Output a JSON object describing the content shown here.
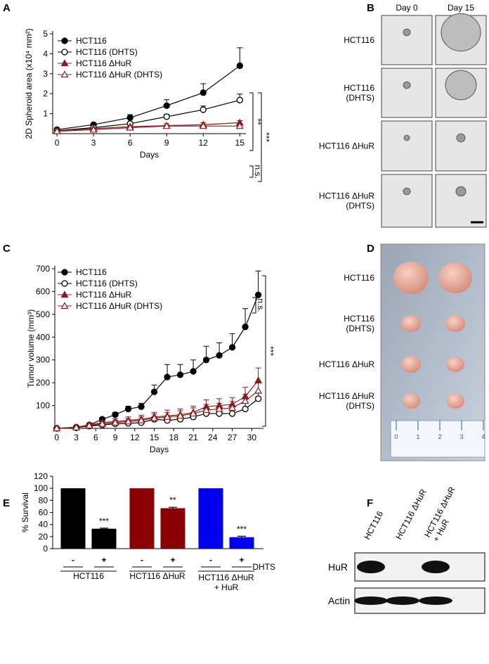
{
  "panel_labels": [
    "A",
    "B",
    "C",
    "D",
    "E",
    "F"
  ],
  "chart_data": [
    {
      "type": "line",
      "ylabel": "2D Spheroid area (x10⁴ mm²)",
      "xlabel": "Days",
      "x": [
        0,
        3,
        6,
        9,
        12,
        15
      ],
      "xlim": [
        -0.35,
        15.5
      ],
      "xticks": [
        0,
        3,
        6,
        9,
        12,
        15
      ],
      "ylim": [
        0,
        5
      ],
      "yticks": [
        1,
        2,
        3,
        4,
        5
      ],
      "series": [
        {
          "name": "HCT116",
          "color": "#000000",
          "marker": "circle",
          "filled": true,
          "values": [
            0.2,
            0.45,
            0.8,
            1.4,
            2.05,
            3.4
          ],
          "errors": [
            0.05,
            0.05,
            0.15,
            0.3,
            0.45,
            0.9
          ]
        },
        {
          "name": "HCT116 (DHTS)",
          "color": "#000000",
          "marker": "circle",
          "filled": false,
          "values": [
            0.15,
            0.3,
            0.5,
            0.85,
            1.2,
            1.68
          ],
          "errors": [
            0.03,
            0.05,
            0.08,
            0.12,
            0.18,
            0.3
          ]
        },
        {
          "name": "HCT116 ΔHuR",
          "color": "#8b1a1a",
          "marker": "triangle",
          "filled": true,
          "values": [
            0.15,
            0.25,
            0.35,
            0.4,
            0.45,
            0.55
          ],
          "errors": [
            0.03,
            0.05,
            0.05,
            0.1,
            0.1,
            0.1
          ]
        },
        {
          "name": "HCT116 ΔHuR (DHTS)",
          "color": "#8b1a1a",
          "marker": "triangle",
          "filled": false,
          "values": [
            0.12,
            0.2,
            0.3,
            0.38,
            0.38,
            0.38
          ],
          "errors": [
            0.03,
            0.03,
            0.05,
            0.05,
            0.05,
            0.05
          ]
        }
      ],
      "annotations": [
        "**",
        "***",
        "n.s."
      ]
    },
    {
      "type": "line",
      "ylabel": "Tumor volume (mm³)",
      "xlabel": "Days",
      "x": [
        0,
        3,
        5,
        7,
        9,
        11,
        13,
        15,
        17,
        19,
        21,
        23,
        25,
        27,
        29,
        31
      ],
      "xlim": [
        -0.3,
        31.8
      ],
      "xticks": [
        0,
        3,
        6,
        9,
        12,
        15,
        18,
        21,
        24,
        27,
        30
      ],
      "ylim": [
        0,
        700
      ],
      "yticks": [
        100,
        200,
        300,
        400,
        500,
        600,
        700
      ],
      "series": [
        {
          "name": "HCT116",
          "color": "#000000",
          "marker": "circle",
          "filled": true,
          "values": [
            0,
            5,
            15,
            40,
            60,
            85,
            95,
            160,
            225,
            235,
            250,
            300,
            320,
            355,
            445,
            585
          ],
          "errors": [
            0,
            3,
            5,
            8,
            10,
            12,
            15,
            30,
            55,
            45,
            50,
            60,
            55,
            60,
            80,
            105
          ]
        },
        {
          "name": "HCT116 (DHTS)",
          "color": "#000000",
          "marker": "circle",
          "filled": false,
          "values": [
            0,
            3,
            10,
            15,
            20,
            22,
            25,
            40,
            35,
            40,
            50,
            65,
            65,
            65,
            85,
            130
          ],
          "errors": [
            0,
            2,
            4,
            5,
            6,
            8,
            10,
            12,
            10,
            12,
            15,
            20,
            20,
            18,
            25,
            30
          ]
        },
        {
          "name": "HCT116 ΔHuR",
          "color": "#8b1a1a",
          "marker": "triangle",
          "filled": true,
          "values": [
            0,
            5,
            15,
            25,
            30,
            35,
            40,
            50,
            55,
            60,
            70,
            95,
            100,
            105,
            140,
            210
          ],
          "errors": [
            0,
            3,
            5,
            10,
            12,
            15,
            18,
            20,
            25,
            25,
            28,
            30,
            30,
            30,
            40,
            55
          ]
        },
        {
          "name": "HCT116 ΔHuR (DHTS)",
          "color": "#8b1a1a",
          "marker": "triangle",
          "filled": false,
          "values": [
            0,
            4,
            12,
            20,
            25,
            30,
            35,
            45,
            50,
            55,
            65,
            80,
            85,
            90,
            120,
            165
          ],
          "errors": [
            0,
            3,
            5,
            8,
            10,
            12,
            15,
            18,
            20,
            22,
            25,
            25,
            25,
            28,
            30,
            35
          ]
        }
      ],
      "annotations": [
        "***",
        "n.s."
      ]
    },
    {
      "type": "bar",
      "ylabel": "% Survival",
      "categories": [
        "-",
        "+",
        "-",
        "+",
        "-",
        "+"
      ],
      "values": [
        100,
        33,
        100,
        67,
        100,
        19
      ],
      "errors": [
        0,
        1,
        0,
        1.5,
        0,
        1.5
      ],
      "colors": [
        "#000000",
        "#000000",
        "#8b0000",
        "#8b0000",
        "#0000ee",
        "#0000ee"
      ],
      "significance": [
        null,
        "***",
        null,
        "**",
        null,
        "***"
      ],
      "ylim": [
        0,
        120
      ],
      "yticks": [
        0,
        20,
        40,
        60,
        80,
        100,
        120
      ],
      "groups": [
        "HCT116",
        "HCT116 ΔHuR",
        "HCT116 ΔHuR\n+ HuR"
      ],
      "factor_label": "DHTS"
    }
  ],
  "spheroid_images": {
    "columns": [
      "Day 0",
      "Day 15"
    ],
    "rows": [
      "HCT116",
      "HCT116\n(DHTS)",
      "HCT116 ΔHuR",
      "HCT116 ΔHuR\n(DHTS)"
    ]
  },
  "tumor_photo": {
    "rows": [
      "HCT116",
      "HCT116\n(DHTS)",
      "HCT116 ΔHuR",
      "HCT116 ΔHuR\n(DHTS)"
    ],
    "ruler_ticks": [
      0,
      1,
      2,
      3,
      4
    ]
  },
  "western_blot": {
    "lanes": [
      "HCT116",
      "HCT116 ΔHuR",
      "HCT116 ΔHuR\n+ HuR"
    ],
    "rows": [
      "HuR",
      "Actin"
    ]
  }
}
